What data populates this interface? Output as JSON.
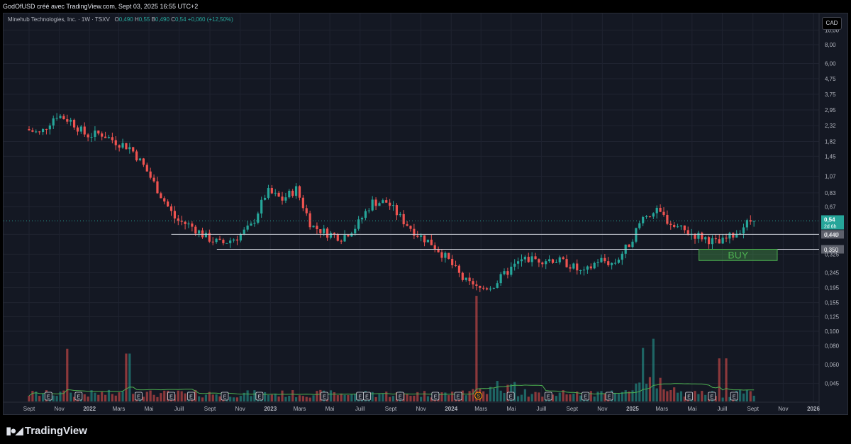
{
  "header": {
    "text": "GodOfUSD créé avec TradingView.com, Sept 03, 2025 16:55 UTC+2"
  },
  "legend": {
    "name": "Minehub Technologies, Inc. · 1W · TSXV",
    "o_label": "O",
    "o": "0,490",
    "h_label": "H",
    "h": "0,55",
    "b_label": "B",
    "b": "0,490",
    "c_label": "C",
    "c": "0,54",
    "change": "+0,060 (+12,50%)"
  },
  "currency_button": "CAD",
  "footer": {
    "logo_text": "TradingView"
  },
  "colors": {
    "up": "#26a69a",
    "down": "#ef5350",
    "background": "#141823",
    "grid": "#1f2330",
    "ma": "#4caf50"
  },
  "chart_data": {
    "type": "candlestick",
    "x_start": "2021-09",
    "x_end": "2026-01",
    "y_scale": "log",
    "ylim": [
      0.04,
      11
    ],
    "y_ticks": [
      "10,00",
      "8,00",
      "6,00",
      "4,75",
      "3,75",
      "2,95",
      "2,32",
      "1,82",
      "1,45",
      "1,07",
      "0,83",
      "0,67",
      "0,440",
      "0,325",
      "0,245",
      "0,195",
      "0,155",
      "0,125",
      "0,100",
      "0,080",
      "0,060",
      "0,045"
    ],
    "y_tick_values": [
      10,
      8,
      6,
      4.75,
      3.75,
      2.95,
      2.32,
      1.82,
      1.45,
      1.07,
      0.83,
      0.67,
      0.44,
      0.325,
      0.245,
      0.195,
      0.155,
      0.125,
      0.1,
      0.08,
      0.06,
      0.045
    ],
    "x_ticks": [
      {
        "label": "Sept",
        "date": "2021-09-01"
      },
      {
        "label": "Nov",
        "date": "2021-11-01"
      },
      {
        "label": "2022",
        "date": "2022-01-01",
        "bold": true
      },
      {
        "label": "Mars",
        "date": "2022-03-01"
      },
      {
        "label": "Mai",
        "date": "2022-05-01"
      },
      {
        "label": "Juill",
        "date": "2022-07-01"
      },
      {
        "label": "Sept",
        "date": "2022-09-01"
      },
      {
        "label": "Nov",
        "date": "2022-11-01"
      },
      {
        "label": "2023",
        "date": "2023-01-01",
        "bold": true
      },
      {
        "label": "Mars",
        "date": "2023-03-01"
      },
      {
        "label": "Mai",
        "date": "2023-05-01"
      },
      {
        "label": "Juill",
        "date": "2023-07-01"
      },
      {
        "label": "Sept",
        "date": "2023-09-01"
      },
      {
        "label": "Nov",
        "date": "2023-11-01"
      },
      {
        "label": "2024",
        "date": "2024-01-01",
        "bold": true
      },
      {
        "label": "Mars",
        "date": "2024-03-01"
      },
      {
        "label": "Mai",
        "date": "2024-05-01"
      },
      {
        "label": "Juill",
        "date": "2024-07-01"
      },
      {
        "label": "Sept",
        "date": "2024-09-01"
      },
      {
        "label": "Nov",
        "date": "2024-11-01"
      },
      {
        "label": "2025",
        "date": "2025-01-01",
        "bold": true
      },
      {
        "label": "Mars",
        "date": "2025-03-01"
      },
      {
        "label": "Mai",
        "date": "2025-05-01"
      },
      {
        "label": "Juill",
        "date": "2025-07-01"
      },
      {
        "label": "Sept",
        "date": "2025-09-01"
      },
      {
        "label": "Nov",
        "date": "2025-11-01"
      },
      {
        "label": "2026",
        "date": "2026-01-01",
        "bold": true
      }
    ],
    "price_path": [
      [
        "2021-09-01",
        2.2
      ],
      [
        "2021-10-01",
        2.05
      ],
      [
        "2021-11-01",
        2.75
      ],
      [
        "2021-12-01",
        2.5
      ],
      [
        "2022-01-01",
        2.0
      ],
      [
        "2022-02-01",
        2.05
      ],
      [
        "2022-03-01",
        1.82
      ],
      [
        "2022-04-01",
        1.65
      ],
      [
        "2022-05-01",
        1.2
      ],
      [
        "2022-06-01",
        0.8
      ],
      [
        "2022-07-01",
        0.55
      ],
      [
        "2022-08-01",
        0.5
      ],
      [
        "2022-09-01",
        0.42
      ],
      [
        "2022-10-01",
        0.38
      ],
      [
        "2022-11-01",
        0.42
      ],
      [
        "2022-12-01",
        0.5
      ],
      [
        "2023-01-01",
        0.85
      ],
      [
        "2023-02-01",
        0.75
      ],
      [
        "2023-03-01",
        0.88
      ],
      [
        "2023-04-01",
        0.5
      ],
      [
        "2023-05-01",
        0.45
      ],
      [
        "2023-06-01",
        0.42
      ],
      [
        "2023-07-01",
        0.5
      ],
      [
        "2023-08-01",
        0.72
      ],
      [
        "2023-09-01",
        0.72
      ],
      [
        "2023-10-01",
        0.55
      ],
      [
        "2023-11-01",
        0.44
      ],
      [
        "2023-12-01",
        0.38
      ],
      [
        "2024-01-01",
        0.3
      ],
      [
        "2024-02-01",
        0.22
      ],
      [
        "2024-03-01",
        0.19
      ],
      [
        "2024-04-01",
        0.2
      ],
      [
        "2024-05-01",
        0.25
      ],
      [
        "2024-06-01",
        0.3
      ],
      [
        "2024-07-01",
        0.3
      ],
      [
        "2024-08-01",
        0.3
      ],
      [
        "2024-09-01",
        0.28
      ],
      [
        "2024-10-01",
        0.24
      ],
      [
        "2024-11-01",
        0.3
      ],
      [
        "2024-12-01",
        0.28
      ],
      [
        "2025-01-01",
        0.38
      ],
      [
        "2025-02-01",
        0.6
      ],
      [
        "2025-03-01",
        0.62
      ],
      [
        "2025-04-01",
        0.5
      ],
      [
        "2025-05-01",
        0.45
      ],
      [
        "2025-06-01",
        0.42
      ],
      [
        "2025-07-01",
        0.38
      ],
      [
        "2025-08-01",
        0.44
      ],
      [
        "2025-09-01",
        0.54
      ]
    ],
    "volume_spikes": [
      {
        "date": "2021-11-15",
        "volume": 0.55,
        "dir": "up"
      },
      {
        "date": "2022-03-20",
        "volume": 0.5,
        "dir": "down"
      },
      {
        "date": "2024-02-20",
        "volume": 1.0,
        "dir": "down"
      },
      {
        "date": "2025-02-10",
        "volume": 0.6,
        "dir": "up"
      },
      {
        "date": "2025-01-20",
        "volume": 0.45,
        "dir": "up"
      },
      {
        "date": "2025-06-25",
        "volume": 0.45,
        "dir": "down"
      },
      {
        "date": "2025-07-10",
        "volume": 0.45,
        "dir": "down"
      }
    ],
    "horizontal_lines": [
      {
        "price": 0.44,
        "label": "0,440",
        "from": "2022-06-15"
      },
      {
        "price": 0.35,
        "label": "0,350",
        "from": "2022-09-15"
      }
    ],
    "last_price": {
      "value": 0.54,
      "label": "0,54",
      "timer": "2d 6h"
    },
    "buy_box": {
      "label": "BUY",
      "from": "2025-05-15",
      "to": "2025-10-20",
      "top": 0.35,
      "bottom": 0.295
    },
    "earnings_markers": [
      "2021-10-10",
      "2021-12-10",
      "2022-04-10",
      "2022-06-15",
      "2022-07-25",
      "2022-10-01",
      "2022-12-10",
      "2023-04-20",
      "2023-07-01",
      "2023-07-15",
      "2023-09-20",
      "2023-11-30",
      "2024-01-15",
      "2024-04-30",
      "2024-07-15",
      "2024-09-28",
      "2024-11-15",
      "2025-04-25",
      "2025-06-10",
      "2025-07-25"
    ],
    "earnings_marker_label": "E",
    "dividend_marker": {
      "date": "2024-02-25",
      "label": "S"
    }
  }
}
